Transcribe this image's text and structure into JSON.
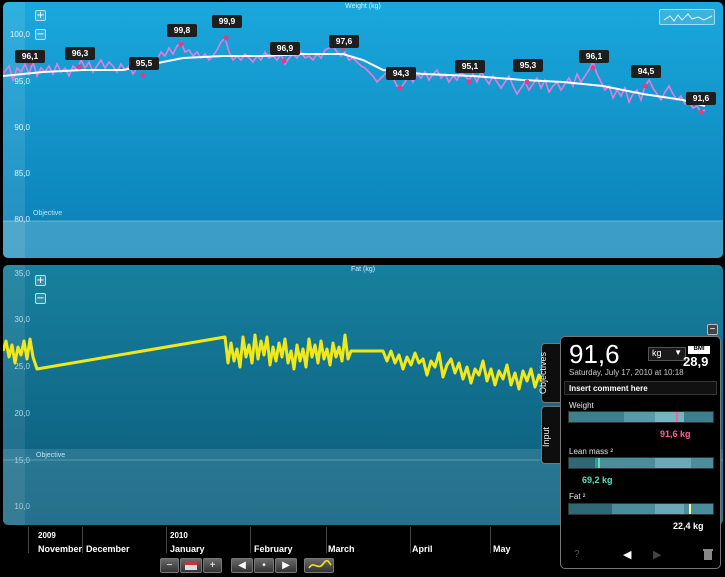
{
  "weight_chart": {
    "title": "Weight (kg)",
    "zoom_in": "+",
    "zoom_out": "−",
    "y_ticks": [
      "100,0",
      "95,0",
      "90,0",
      "85,0",
      "80,0"
    ],
    "objective_label": "Objective",
    "points": [
      {
        "label": "96,1"
      },
      {
        "label": "96,3"
      },
      {
        "label": "95,5"
      },
      {
        "label": "99,8"
      },
      {
        "label": "99,9"
      },
      {
        "label": "96,9"
      },
      {
        "label": "97,6"
      },
      {
        "label": "94,3"
      },
      {
        "label": "95,1"
      },
      {
        "label": "95,3"
      },
      {
        "label": "96,1"
      },
      {
        "label": "94,5"
      },
      {
        "label": "91,6"
      }
    ],
    "colors": {
      "raw_line": "#e07de0",
      "trend_line": "#ffffff",
      "marker": "#e03c8a"
    }
  },
  "fat_chart": {
    "title": "Fat (kg)",
    "zoom_in": "+",
    "zoom_out": "−",
    "y_ticks": [
      "35,0",
      "30,0",
      "25,0",
      "20,0",
      "15,0",
      "10,0"
    ],
    "objective_label": "Objective",
    "colors": {
      "line": "#f0e81a"
    }
  },
  "timeline": {
    "years": [
      {
        "label": "2009"
      },
      {
        "label": "2010"
      }
    ],
    "months": [
      "November",
      "December",
      "January",
      "February",
      "March",
      "April",
      "May"
    ]
  },
  "nav": {
    "minus": "−",
    "plus": "+",
    "prev": "◀",
    "dot": "•",
    "next": "▶",
    "calendar_icon": "calendar-icon",
    "trend_icon": "trend-icon"
  },
  "side_panel": {
    "collapse": "−",
    "tabs": [
      "Objectives",
      "Input"
    ],
    "current_weight": "91,6",
    "unit": "kg",
    "unit_arrow": "▼",
    "bmi_label": "BMI",
    "bmi_value": "28,9",
    "datetime": "Saturday, July 17, 2010 at 10:18",
    "comment_placeholder": "Insert comment here",
    "gauges": [
      {
        "label": "Weight",
        "value": "91,6 kg",
        "color": "#ff5fa2",
        "level": 0.73
      },
      {
        "label": "Lean mass ²",
        "value": "69,2 kg",
        "color": "#58e0c0",
        "level": 0.2
      },
      {
        "label": "Fat ²",
        "value": "22,4 kg",
        "color": "#fff5a0",
        "level": 0.82
      }
    ],
    "help": "?",
    "prev": "◀",
    "next": "▶",
    "trash_icon": "trash-icon"
  }
}
